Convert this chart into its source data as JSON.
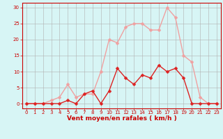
{
  "x": [
    0,
    1,
    2,
    3,
    4,
    5,
    6,
    7,
    8,
    9,
    10,
    11,
    12,
    13,
    14,
    15,
    16,
    17,
    18,
    19,
    20,
    21,
    22,
    23
  ],
  "y_mean": [
    0,
    0,
    0,
    0,
    0,
    1,
    0,
    3,
    4,
    0,
    4,
    11,
    8,
    6,
    9,
    8,
    12,
    10,
    11,
    8,
    0,
    0,
    0,
    0
  ],
  "y_gust": [
    0,
    0,
    0,
    1,
    2,
    6,
    2,
    3,
    3,
    10,
    20,
    19,
    24,
    25,
    25,
    23,
    23,
    30,
    27,
    15,
    13,
    2,
    0,
    0
  ],
  "bg_color": "#d7f5f5",
  "grid_color": "#b0b0b0",
  "line_mean_color": "#dd2222",
  "line_gust_color": "#f0a0a0",
  "marker_mean_color": "#dd2222",
  "marker_gust_color": "#f0a0a0",
  "xlabel": "Vent moyen/en rafales ( km/h )",
  "yticks": [
    0,
    5,
    10,
    15,
    20,
    25,
    30
  ],
  "xticks": [
    0,
    1,
    2,
    3,
    4,
    5,
    6,
    7,
    8,
    9,
    10,
    11,
    12,
    13,
    14,
    15,
    16,
    17,
    18,
    19,
    20,
    21,
    22,
    23
  ],
  "ylim": [
    -1.5,
    31.5
  ],
  "xlim": [
    -0.5,
    23.5
  ],
  "axis_color": "#cc0000",
  "xlabel_color": "#cc0000",
  "tick_color": "#cc0000",
  "line_width": 1.0,
  "marker_size": 2.5,
  "tick_fontsize": 5.0,
  "xlabel_fontsize": 6.5
}
